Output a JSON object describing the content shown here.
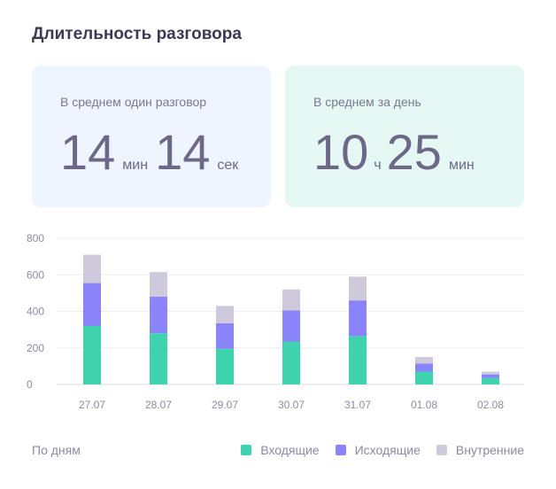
{
  "title": "Длительность разговора",
  "cards": {
    "avg_call": {
      "label": "В среднем один разговор",
      "minutes": "14",
      "minutes_unit": "мин",
      "seconds": "14",
      "seconds_unit": "сек"
    },
    "avg_day": {
      "label": "В среднем за день",
      "hours": "10",
      "hours_unit": "ч",
      "minutes": "25",
      "minutes_unit": "мин"
    }
  },
  "footer": {
    "by_days": "По дням"
  },
  "colors": {
    "incoming": "#3ed2ae",
    "outgoing": "#8a84fb",
    "internal": "#cfc9dc",
    "card_blue": "#eef5fe",
    "card_green": "#e6f8f3"
  },
  "chart_data": {
    "type": "bar",
    "stacked": true,
    "categories": [
      "27.07",
      "28.07",
      "29.07",
      "30.07",
      "31.07",
      "01.08",
      "02.08"
    ],
    "series": [
      {
        "name": "Входящие",
        "key": "incoming",
        "values": [
          320,
          280,
          195,
          235,
          265,
          70,
          35
        ]
      },
      {
        "name": "Исходящие",
        "key": "outgoing",
        "values": [
          235,
          200,
          140,
          170,
          195,
          45,
          20
        ]
      },
      {
        "name": "Внутренние",
        "key": "internal",
        "values": [
          155,
          135,
          95,
          115,
          130,
          35,
          15
        ]
      }
    ],
    "ylim": [
      0,
      800
    ],
    "yticks": [
      "0",
      "200",
      "400",
      "600",
      "800"
    ],
    "grid": true,
    "legend": "bottom-right"
  }
}
